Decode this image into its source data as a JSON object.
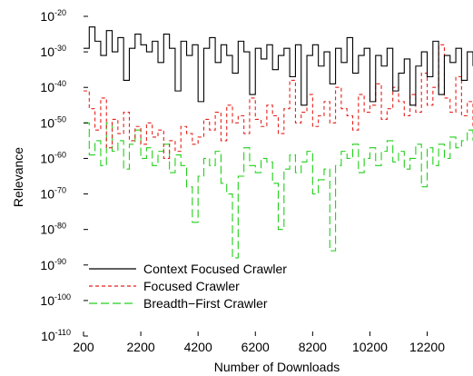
{
  "chart_data": {
    "type": "line",
    "xlabel": "Number of Downloads",
    "ylabel": "Relevance",
    "xlim": [
      200,
      13800
    ],
    "ylim_exponent": [
      -110,
      -20
    ],
    "y_scale": "log",
    "x_ticks": [
      200,
      2200,
      4200,
      6200,
      8200,
      10200,
      12200
    ],
    "y_tick_exponents": [
      -20,
      -30,
      -40,
      -50,
      -60,
      -70,
      -80,
      -90,
      -100,
      -110
    ],
    "y_tick_base": "10",
    "grid": false,
    "legend_position": "bottom-left",
    "x": [
      200,
      400,
      600,
      800,
      1000,
      1200,
      1400,
      1600,
      1800,
      2000,
      2200,
      2400,
      2600,
      2800,
      3000,
      3200,
      3400,
      3600,
      3800,
      4000,
      4200,
      4400,
      4600,
      4800,
      5000,
      5200,
      5400,
      5600,
      5800,
      6000,
      6200,
      6400,
      6600,
      6800,
      7000,
      7200,
      7400,
      7600,
      7800,
      8000,
      8200,
      8400,
      8600,
      8800,
      9000,
      9200,
      9400,
      9600,
      9800,
      10000,
      10200,
      10400,
      10600,
      10800,
      11000,
      11200,
      11400,
      11600,
      11800,
      12000,
      12200,
      12400,
      12600,
      12800,
      13000,
      13200,
      13400,
      13600,
      13800
    ],
    "series": [
      {
        "name": "Context Focused Crawler",
        "color": "#000000",
        "dash": "solid",
        "log10_values": [
          -29,
          -23,
          -27,
          -31,
          -24,
          -30,
          -26,
          -38,
          -29,
          -25,
          -28,
          -30,
          -27,
          -33,
          -25,
          -29,
          -41,
          -27,
          -31,
          -28,
          -44,
          -29,
          -26,
          -33,
          -28,
          -31,
          -36,
          -27,
          -30,
          -42,
          -29,
          -32,
          -28,
          -35,
          -31,
          -29,
          -37,
          -28,
          -45,
          -31,
          -28,
          -34,
          -30,
          -39,
          -29,
          -33,
          -26,
          -36,
          -31,
          -29,
          -44,
          -31,
          -34,
          -29,
          -41,
          -36,
          -32,
          -45,
          -34,
          -30,
          -37,
          -27,
          -42,
          -31,
          -33,
          -29,
          -38,
          -30,
          -34
        ]
      },
      {
        "name": "Focused Crawler",
        "color": "#e8201b",
        "dash": "dashed",
        "log10_values": [
          -41,
          -46,
          -52,
          -43,
          -57,
          -49,
          -53,
          -47,
          -55,
          -51,
          -56,
          -50,
          -54,
          -52,
          -60,
          -55,
          -58,
          -51,
          -53,
          -56,
          -54,
          -49,
          -52,
          -47,
          -55,
          -45,
          -50,
          -48,
          -53,
          -43,
          -49,
          -51,
          -45,
          -48,
          -53,
          -46,
          -38,
          -50,
          -47,
          -42,
          -51,
          -48,
          -44,
          -50,
          -40,
          -46,
          -48,
          -52,
          -42,
          -47,
          -45,
          -39,
          -49,
          -46,
          -40,
          -44,
          -48,
          -42,
          -47,
          -36,
          -45,
          -40,
          -28,
          -43,
          -47,
          -37,
          -48,
          -44,
          -51
        ]
      },
      {
        "name": "Breadth−First Crawler",
        "color": "#22d01a",
        "dash": "longdash",
        "log10_values": [
          -50,
          -59,
          -55,
          -62,
          -50,
          -58,
          -55,
          -63,
          -56,
          -52,
          -60,
          -57,
          -62,
          -58,
          -56,
          -64,
          -59,
          -62,
          -68,
          -78,
          -65,
          -60,
          -62,
          -58,
          -67,
          -70,
          -88,
          -65,
          -57,
          -62,
          -64,
          -60,
          -61,
          -67,
          -80,
          -63,
          -59,
          -64,
          -61,
          -58,
          -70,
          -66,
          -63,
          -86,
          -62,
          -58,
          -60,
          -56,
          -64,
          -60,
          -57,
          -62,
          -58,
          -55,
          -61,
          -58,
          -63,
          -60,
          -56,
          -68,
          -57,
          -62,
          -56,
          -60,
          -54,
          -57,
          -55,
          -52,
          -55
        ]
      }
    ]
  }
}
